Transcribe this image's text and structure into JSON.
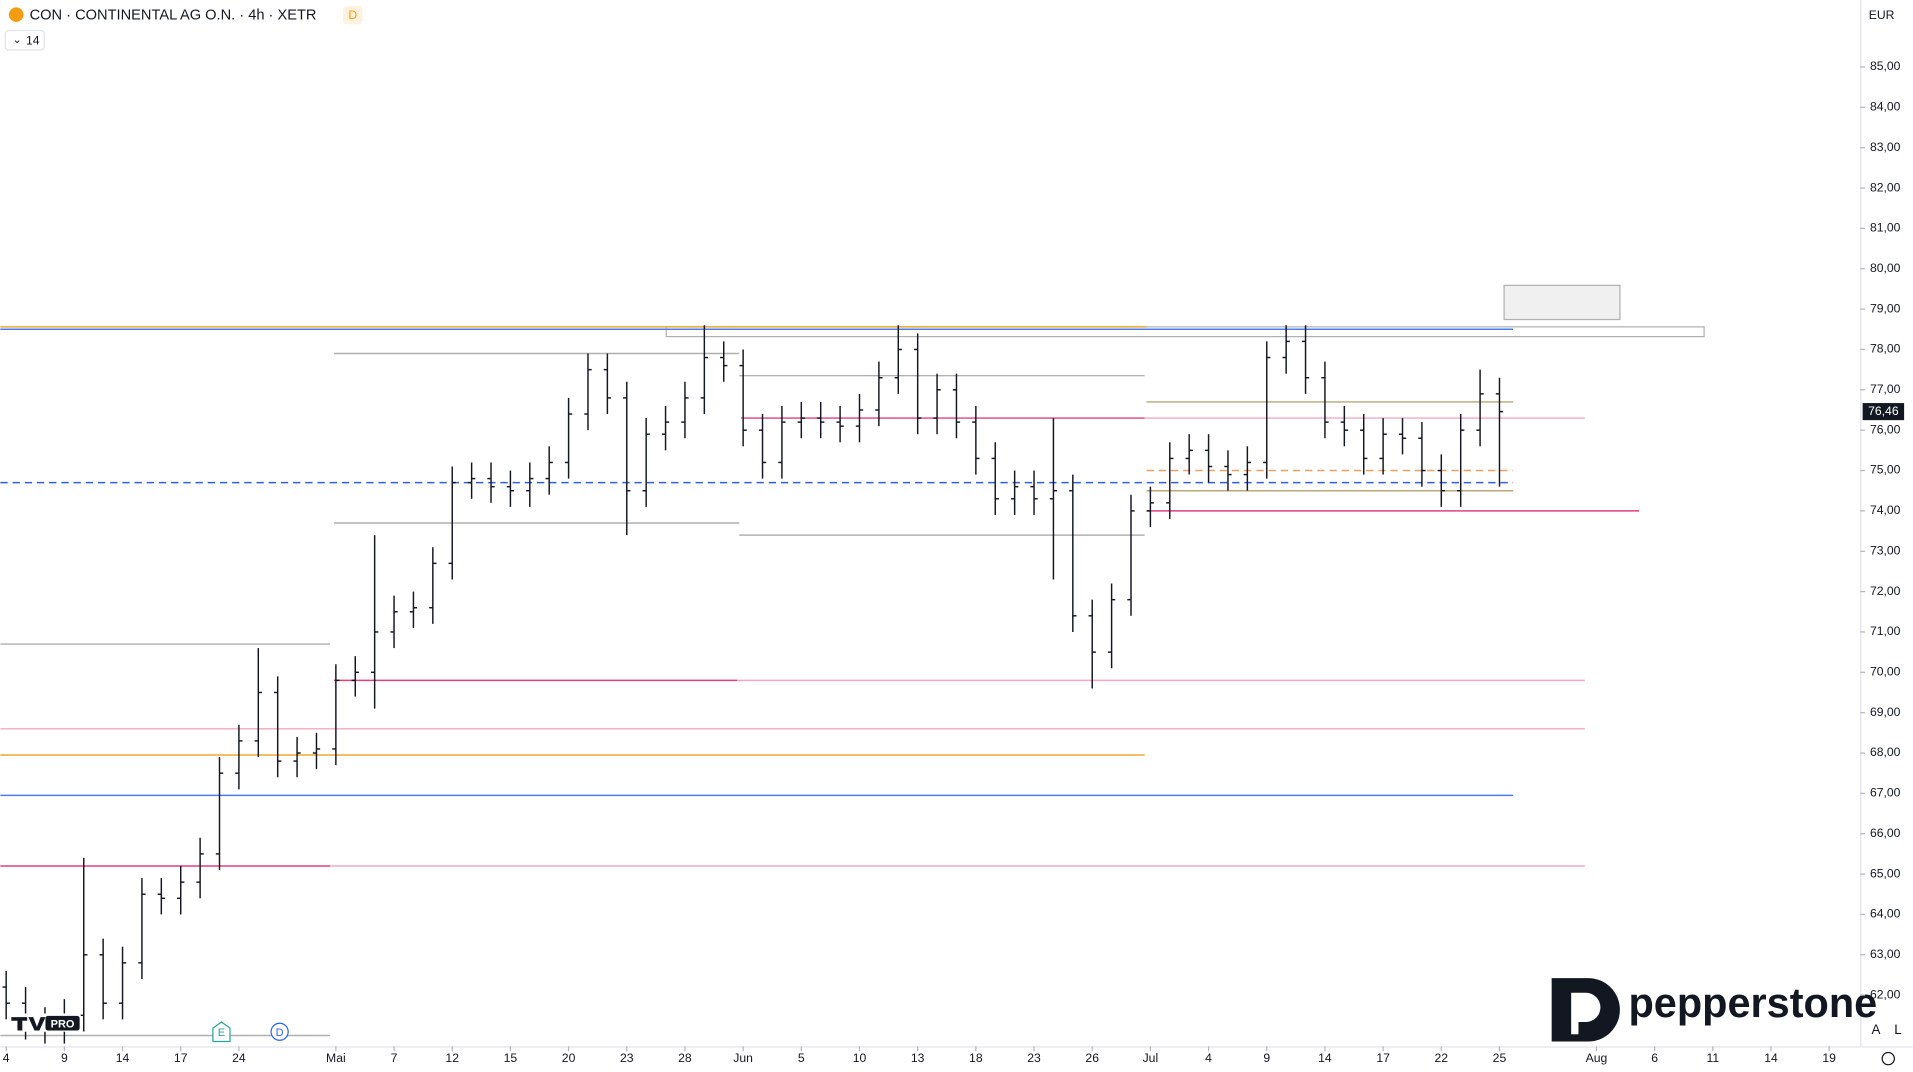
{
  "chart_data": {
    "type": "ohlc",
    "title": "CON · CONTINENTAL AG O.N. · 4h · XETR",
    "interval_badge": "D",
    "indicator_length": "14",
    "currency": "EUR",
    "brand": "pepperstone",
    "platform_badge": "PRO",
    "event_markers": [
      {
        "label": "E",
        "x": 11.1,
        "color": "#22ab94"
      },
      {
        "label": "D",
        "x": 14.1,
        "color": "#2962ff"
      }
    ],
    "scale_buttons": [
      "A",
      "L"
    ],
    "color": "#131722",
    "x": [
      0,
      1,
      2,
      3,
      4,
      5,
      6,
      7,
      8,
      9,
      10,
      11,
      12,
      13,
      14,
      15,
      16,
      17,
      18,
      19,
      20,
      21,
      22,
      23,
      24,
      25,
      26,
      27,
      28,
      29,
      30,
      31,
      32,
      33,
      34,
      35,
      36,
      37,
      38,
      39,
      40,
      41,
      42,
      43,
      44,
      45,
      46,
      47,
      48,
      49,
      50,
      51,
      52,
      53,
      54,
      55,
      56,
      57,
      58,
      59,
      60,
      61,
      62,
      63,
      64,
      65,
      66,
      67,
      68,
      69,
      70,
      71,
      72,
      73,
      74,
      75,
      76,
      77
    ],
    "open": [
      62.2,
      61.8,
      61.3,
      61.2,
      61.5,
      63.0,
      61.8,
      62.8,
      64.5,
      64.4,
      64.8,
      65.5,
      67.5,
      68.3,
      69.5,
      67.8,
      68.0,
      68.1,
      69.8,
      70.0,
      71.0,
      71.5,
      71.6,
      72.7,
      74.7,
      74.8,
      74.6,
      74.5,
      74.8,
      75.2,
      76.4,
      77.5,
      76.8,
      74.5,
      75.9,
      76.2,
      76.8,
      77.8,
      77.6,
      76.0,
      75.2,
      76.2,
      76.3,
      76.2,
      76.1,
      76.5,
      77.3,
      78.0,
      76.3,
      77.0,
      76.2,
      75.3,
      74.3,
      74.6,
      74.3,
      74.5,
      71.4,
      70.5,
      71.8,
      74.0,
      74.2,
      75.3,
      75.5,
      75.1,
      74.9,
      75.2,
      77.8,
      78.2,
      77.3,
      76.2,
      76.0,
      75.3,
      75.9,
      75.8,
      75.0,
      74.5,
      76.0,
      76.9
    ],
    "high": [
      62.6,
      62.2,
      61.7,
      61.9,
      65.4,
      63.4,
      63.2,
      64.9,
      64.9,
      65.2,
      65.9,
      67.9,
      68.7,
      70.6,
      69.9,
      68.4,
      68.5,
      70.2,
      70.4,
      73.4,
      71.9,
      72.0,
      73.1,
      75.1,
      75.2,
      75.2,
      75.0,
      75.2,
      75.6,
      76.8,
      77.9,
      77.9,
      77.2,
      76.3,
      76.6,
      77.2,
      78.6,
      78.2,
      78.0,
      76.4,
      76.6,
      76.7,
      76.7,
      76.6,
      76.9,
      77.7,
      78.6,
      78.4,
      77.4,
      77.4,
      76.6,
      75.7,
      75.0,
      75.0,
      76.3,
      74.9,
      71.8,
      72.2,
      74.4,
      74.6,
      75.7,
      75.9,
      75.9,
      75.5,
      75.6,
      78.2,
      78.6,
      78.6,
      77.7,
      76.6,
      76.4,
      76.3,
      76.3,
      76.2,
      75.4,
      76.4,
      77.5,
      77.3
    ],
    "low": [
      61.4,
      60.9,
      60.8,
      60.8,
      61.1,
      61.4,
      61.4,
      62.4,
      64.0,
      64.0,
      64.4,
      65.1,
      67.1,
      67.9,
      67.4,
      67.4,
      67.6,
      67.7,
      69.4,
      69.1,
      70.6,
      71.1,
      71.2,
      72.3,
      74.3,
      74.2,
      74.1,
      74.1,
      74.4,
      74.8,
      76.0,
      76.4,
      73.4,
      74.1,
      75.5,
      75.8,
      76.4,
      77.2,
      75.6,
      74.8,
      74.8,
      75.8,
      75.8,
      75.7,
      75.7,
      76.1,
      76.9,
      75.9,
      75.9,
      75.8,
      74.9,
      73.9,
      73.9,
      73.9,
      72.3,
      71.0,
      69.6,
      70.1,
      71.4,
      73.6,
      73.8,
      74.9,
      74.7,
      74.5,
      74.5,
      74.8,
      77.4,
      76.9,
      75.8,
      75.6,
      74.9,
      74.9,
      75.4,
      74.6,
      74.1,
      74.1,
      75.6,
      74.6
    ],
    "close": [
      61.8,
      61.3,
      61.2,
      61.5,
      63.0,
      61.8,
      62.8,
      64.5,
      64.4,
      64.8,
      65.5,
      67.5,
      68.3,
      69.5,
      67.8,
      68.0,
      68.1,
      69.8,
      70.0,
      71.0,
      71.5,
      71.6,
      72.7,
      74.7,
      74.8,
      74.6,
      74.5,
      74.8,
      75.2,
      76.4,
      77.5,
      76.8,
      74.5,
      75.9,
      76.2,
      76.8,
      77.8,
      77.6,
      76.0,
      75.2,
      76.2,
      76.3,
      76.2,
      76.1,
      76.5,
      77.3,
      78.0,
      76.3,
      77.0,
      76.2,
      75.3,
      74.3,
      74.6,
      74.3,
      74.5,
      71.4,
      70.5,
      71.8,
      74.0,
      74.2,
      75.3,
      75.5,
      75.1,
      74.9,
      75.2,
      77.8,
      78.2,
      77.3,
      76.2,
      76.0,
      75.3,
      75.9,
      75.8,
      75.0,
      74.5,
      76.0,
      76.9,
      76.46
    ],
    "last_price": {
      "value": 76.46,
      "label": "76,46"
    },
    "xlim": [
      -0.3,
      95.6
    ],
    "ylim": [
      60.73,
      86.66
    ],
    "xticks": [
      {
        "value": 0,
        "label": "4"
      },
      {
        "value": 3,
        "label": "9"
      },
      {
        "value": 6,
        "label": "14"
      },
      {
        "value": 9,
        "label": "17"
      },
      {
        "value": 12,
        "label": "24"
      },
      {
        "value": 17,
        "label": "Mai"
      },
      {
        "value": 20,
        "label": "7"
      },
      {
        "value": 23,
        "label": "12"
      },
      {
        "value": 26,
        "label": "15"
      },
      {
        "value": 29,
        "label": "20"
      },
      {
        "value": 32,
        "label": "23"
      },
      {
        "value": 35,
        "label": "28"
      },
      {
        "value": 38,
        "label": "Jun"
      },
      {
        "value": 41,
        "label": "5"
      },
      {
        "value": 44,
        "label": "10"
      },
      {
        "value": 47,
        "label": "13"
      },
      {
        "value": 50,
        "label": "18"
      },
      {
        "value": 53,
        "label": "23"
      },
      {
        "value": 56,
        "label": "26"
      },
      {
        "value": 59,
        "label": "Jul"
      },
      {
        "value": 62,
        "label": "4"
      },
      {
        "value": 65,
        "label": "9"
      },
      {
        "value": 68,
        "label": "14"
      },
      {
        "value": 71,
        "label": "17"
      },
      {
        "value": 74,
        "label": "22"
      },
      {
        "value": 77,
        "label": "25"
      },
      {
        "value": 82,
        "label": "Aug"
      },
      {
        "value": 85,
        "label": "6"
      },
      {
        "value": 88,
        "label": "11"
      },
      {
        "value": 91,
        "label": "14"
      },
      {
        "value": 94,
        "label": "19"
      }
    ],
    "yticks": [
      {
        "value": 62,
        "label": "62,00"
      },
      {
        "value": 63,
        "label": "63,00"
      },
      {
        "value": 64,
        "label": "64,00"
      },
      {
        "value": 65,
        "label": "65,00"
      },
      {
        "value": 66,
        "label": "66,00"
      },
      {
        "value": 67,
        "label": "67,00"
      },
      {
        "value": 68,
        "label": "68,00"
      },
      {
        "value": 69,
        "label": "69,00"
      },
      {
        "value": 70,
        "label": "70,00"
      },
      {
        "value": 71,
        "label": "71,00"
      },
      {
        "value": 72,
        "label": "72,00"
      },
      {
        "value": 73,
        "label": "73,00"
      },
      {
        "value": 74,
        "label": "74,00"
      },
      {
        "value": 75,
        "label": "75,00"
      },
      {
        "value": 76,
        "label": "76,00"
      },
      {
        "value": 77,
        "label": "77,00"
      },
      {
        "value": 78,
        "label": "78,00"
      },
      {
        "value": 79,
        "label": "79,00"
      },
      {
        "value": 80,
        "label": "80,00"
      },
      {
        "value": 81,
        "label": "81,00"
      },
      {
        "value": 82,
        "label": "82,00"
      },
      {
        "value": 83,
        "label": "83,00"
      },
      {
        "value": 84,
        "label": "84,00"
      },
      {
        "value": 85,
        "label": "85,00"
      }
    ],
    "levels": [
      {
        "price": 78.56,
        "x0": -0.3,
        "x1": 58.8,
        "color": "#f0a830",
        "dashed": false
      },
      {
        "price": 78.5,
        "x0": -0.3,
        "x1": 77.7,
        "color": "#4a7cf0",
        "dashed": false
      },
      {
        "price": 77.9,
        "x0": 16.9,
        "x1": 37.8,
        "color": "#b0b0b0",
        "dashed": false
      },
      {
        "price": 77.35,
        "x0": 37.8,
        "x1": 58.7,
        "color": "#b0b0b0",
        "dashed": false
      },
      {
        "price": 76.7,
        "x0": 58.8,
        "x1": 77.7,
        "color": "#b8a878",
        "dashed": false
      },
      {
        "price": 76.3,
        "x0": 37.9,
        "x1": 58.7,
        "color": "#e0407a",
        "dashed": false
      },
      {
        "price": 76.3,
        "x0": 58.7,
        "x1": 81.4,
        "color": "#f4a8c0",
        "dashed": false
      },
      {
        "price": 75.0,
        "x0": 58.8,
        "x1": 77.7,
        "color": "#f0a060",
        "dashed": true
      },
      {
        "price": 74.7,
        "x0": -0.3,
        "x1": 77.7,
        "color": "#3060e0",
        "dashed": true
      },
      {
        "price": 74.5,
        "x0": 58.8,
        "x1": 77.7,
        "color": "#b8a878",
        "dashed": false
      },
      {
        "price": 74.0,
        "x0": 58.8,
        "x1": 84.2,
        "color": "#e0407a",
        "dashed": false
      },
      {
        "price": 73.7,
        "x0": 16.9,
        "x1": 37.8,
        "color": "#b0b0b0",
        "dashed": false
      },
      {
        "price": 73.4,
        "x0": 37.8,
        "x1": 58.7,
        "color": "#b0b0b0",
        "dashed": false
      },
      {
        "price": 70.7,
        "x0": -0.3,
        "x1": 16.7,
        "color": "#b0b0b0",
        "dashed": false
      },
      {
        "price": 69.8,
        "x0": 16.9,
        "x1": 37.7,
        "color": "#e0407a",
        "dashed": false
      },
      {
        "price": 69.8,
        "x0": 37.7,
        "x1": 81.4,
        "color": "#f4a8c0",
        "dashed": false
      },
      {
        "price": 68.6,
        "x0": -0.3,
        "x1": 81.4,
        "color": "#f4a8c0",
        "dashed": false
      },
      {
        "price": 67.95,
        "x0": -0.3,
        "x1": 58.7,
        "color": "#f0a830",
        "dashed": false
      },
      {
        "price": 66.95,
        "x0": -0.3,
        "x1": 77.7,
        "color": "#4a7cf0",
        "dashed": false
      },
      {
        "price": 65.2,
        "x0": -0.3,
        "x1": 16.7,
        "color": "#e0407a",
        "dashed": false
      },
      {
        "price": 65.2,
        "x0": 16.7,
        "x1": 81.4,
        "color": "#f4a8c0",
        "dashed": false
      },
      {
        "price": 61.0,
        "x0": -0.3,
        "x1": 16.7,
        "color": "#b0b0b0",
        "dashed": false
      }
    ]
  }
}
